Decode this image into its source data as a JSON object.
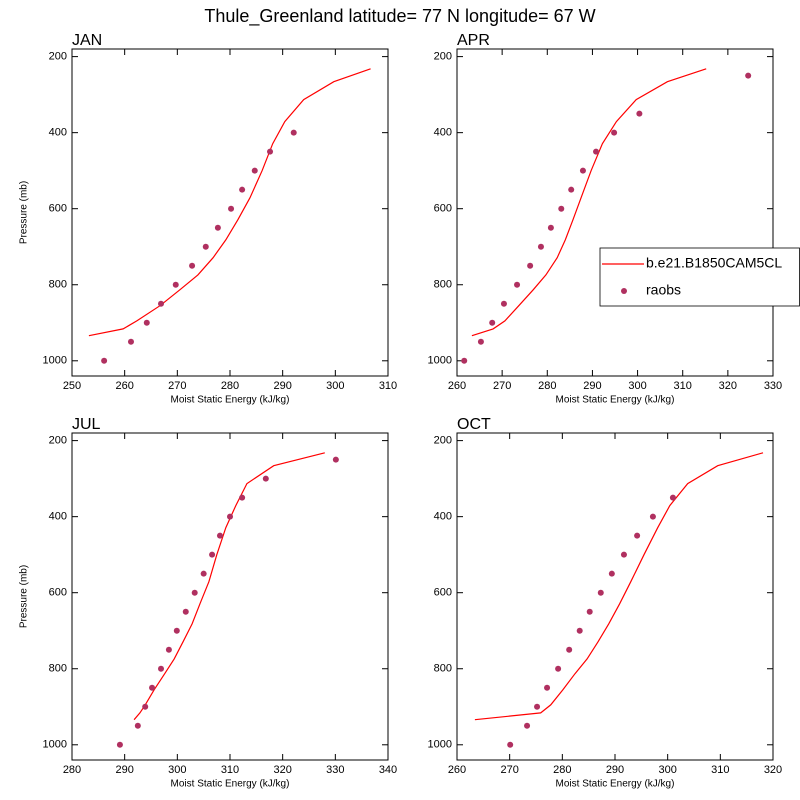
{
  "title": "Thule_Greenland  latitude= 77 N longitude= 67 W",
  "chart_data": [
    {
      "type": "line",
      "title": "JAN",
      "xlabel": "Moist Static Energy (kJ/kg)",
      "ylabel": "Pressure (mb)",
      "xlim": [
        250,
        310
      ],
      "xticks": [
        250,
        260,
        270,
        280,
        290,
        300,
        310
      ],
      "ylim": [
        1040,
        180
      ],
      "yticks": [
        200,
        400,
        600,
        800,
        1000
      ],
      "series": [
        {
          "type": "line",
          "color": "#ff0000",
          "x": [
            253.2,
            259.7,
            262.3,
            266.7,
            270.5,
            273.9,
            276.8,
            279.2,
            281.5,
            283.8,
            286.1,
            288.1,
            290.4,
            294.0,
            299.7,
            306.7
          ],
          "values": [
            934,
            916,
            895,
            855,
            813,
            774,
            729,
            682,
            629,
            571,
            500,
            429,
            371,
            313,
            266,
            232
          ]
        },
        {
          "type": "scatter",
          "color": "#b03060",
          "x": [
            256.1,
            261.2,
            264.2,
            266.9,
            269.7,
            272.8,
            275.4,
            277.7,
            280.2,
            282.3,
            284.7,
            287.6,
            292.1
          ],
          "values": [
            1000,
            950,
            900,
            850,
            800,
            750,
            700,
            650,
            600,
            550,
            500,
            450,
            400
          ]
        }
      ]
    },
    {
      "type": "line",
      "title": "APR",
      "xlabel": "Moist Static Energy (kJ/kg)",
      "xlim": [
        260,
        330
      ],
      "xticks": [
        260,
        270,
        280,
        290,
        300,
        310,
        320,
        330
      ],
      "ylim": [
        1040,
        180
      ],
      "yticks": [
        200,
        400,
        600,
        800,
        1000
      ],
      "legend": "right",
      "series": [
        {
          "name": "b.e21.B1850CAM5CL",
          "type": "line",
          "color": "#ff0000",
          "x": [
            263.3,
            268.0,
            270.6,
            273.7,
            276.9,
            279.7,
            282.2,
            284.0,
            285.7,
            287.5,
            289.7,
            292.2,
            295.3,
            299.7,
            306.6,
            315.2
          ],
          "values": [
            934,
            916,
            895,
            855,
            813,
            774,
            729,
            682,
            629,
            571,
            500,
            429,
            371,
            313,
            266,
            232
          ]
        },
        {
          "name": "raobs",
          "type": "scatter",
          "color": "#b03060",
          "x": [
            261.6,
            265.3,
            267.8,
            270.4,
            273.3,
            276.2,
            278.6,
            280.8,
            283.1,
            285.3,
            287.9,
            290.8,
            294.8,
            300.4,
            324.5
          ],
          "values": [
            1000,
            950,
            900,
            850,
            800,
            750,
            700,
            650,
            600,
            550,
            500,
            450,
            400,
            350,
            250
          ]
        }
      ]
    },
    {
      "type": "line",
      "title": "JUL",
      "xlabel": "Moist Static Energy (kJ/kg)",
      "ylabel": "Pressure (mb)",
      "xlim": [
        280,
        340
      ],
      "xticks": [
        280,
        290,
        300,
        310,
        320,
        330,
        340
      ],
      "ylim": [
        1040,
        180
      ],
      "yticks": [
        200,
        400,
        600,
        800,
        1000
      ],
      "series": [
        {
          "type": "line",
          "color": "#ff0000",
          "x": [
            291.8,
            292.9,
            293.9,
            295.6,
            297.6,
            299.4,
            301.1,
            302.8,
            304.3,
            306.0,
            307.5,
            309.2,
            311.1,
            313.2,
            318.3,
            328.0
          ],
          "values": [
            934,
            916,
            895,
            855,
            813,
            774,
            729,
            682,
            629,
            571,
            500,
            429,
            371,
            313,
            266,
            232
          ]
        },
        {
          "type": "scatter",
          "color": "#b03060",
          "x": [
            289.1,
            292.5,
            293.9,
            295.2,
            296.9,
            298.4,
            299.9,
            301.6,
            303.3,
            305.0,
            306.6,
            308.1,
            310.0,
            312.3,
            316.8,
            330.1
          ],
          "values": [
            1000,
            950,
            900,
            850,
            800,
            750,
            700,
            650,
            600,
            550,
            500,
            450,
            400,
            350,
            300,
            250
          ]
        }
      ]
    },
    {
      "type": "line",
      "title": "OCT",
      "xlabel": "Moist Static Energy (kJ/kg)",
      "xlim": [
        260,
        320
      ],
      "xticks": [
        260,
        270,
        280,
        290,
        300,
        310,
        320
      ],
      "ylim": [
        1040,
        180
      ],
      "yticks": [
        200,
        400,
        600,
        800,
        1000
      ],
      "series": [
        {
          "type": "line",
          "color": "#ff0000",
          "x": [
            263.4,
            275.9,
            277.8,
            280.1,
            282.4,
            284.7,
            286.8,
            288.8,
            290.9,
            293.0,
            295.5,
            298.1,
            300.4,
            303.8,
            309.5,
            318.1
          ],
          "values": [
            934,
            916,
            895,
            855,
            813,
            774,
            729,
            682,
            629,
            571,
            500,
            429,
            371,
            313,
            266,
            232
          ]
        },
        {
          "type": "scatter",
          "color": "#b03060",
          "x": [
            270.1,
            273.3,
            275.2,
            277.1,
            279.2,
            281.3,
            283.3,
            285.2,
            287.3,
            289.4,
            291.7,
            294.2,
            297.2,
            301.0
          ],
          "values": [
            1000,
            950,
            900,
            850,
            800,
            750,
            700,
            650,
            600,
            550,
            500,
            450,
            400,
            350
          ]
        }
      ]
    }
  ]
}
